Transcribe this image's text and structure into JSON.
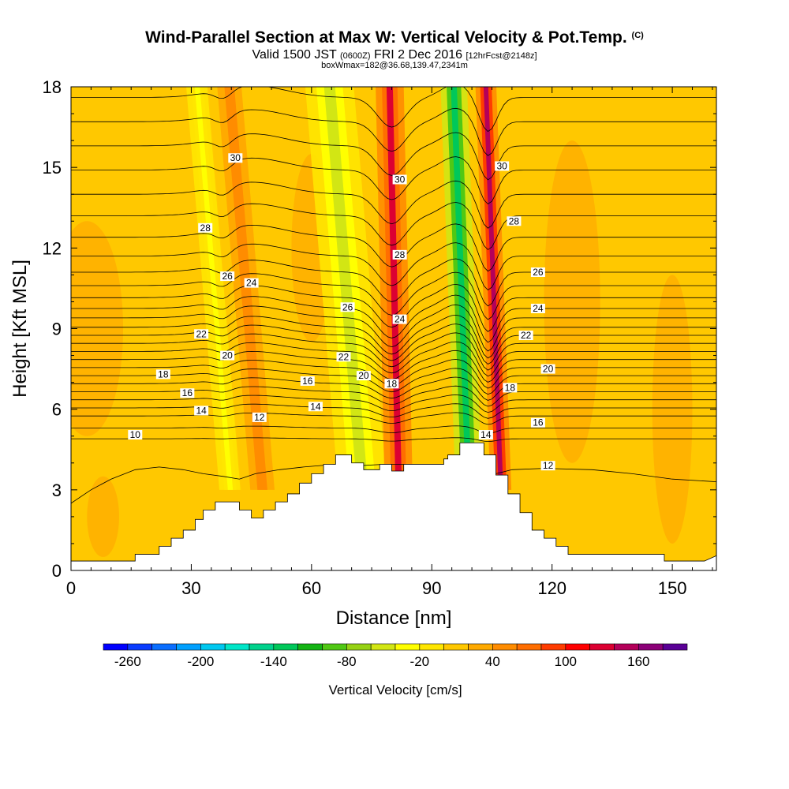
{
  "header": {
    "title": "Wind-Parallel Section at Max W: Vertical Velocity & Pot.Temp.",
    "title_mark": "(C)",
    "valid_prefix": "Valid 1500 JST",
    "valid_utc": "(0600Z)",
    "valid_date": "FRI 2 Dec 2016",
    "forecast": "[12hrFcst@2148z]",
    "box_info": "boxWmax=182@36.68,139.47,2341m"
  },
  "chart_data": {
    "type": "heatmap",
    "xlabel": "Distance [nm]",
    "ylabel": "Height [Kft MSL]",
    "xlim": [
      0,
      161
    ],
    "ylim": [
      0,
      18
    ],
    "xticks": [
      0,
      30,
      60,
      90,
      120,
      150
    ],
    "yticks": [
      0,
      3,
      6,
      9,
      12,
      15,
      18
    ],
    "grid": false,
    "colorbar": {
      "label": "Vertical Velocity [cm/s]",
      "levels": [
        -260,
        -240,
        -220,
        -200,
        -180,
        -160,
        -140,
        -120,
        -100,
        -80,
        -60,
        -40,
        -20,
        0,
        20,
        40,
        60,
        80,
        100,
        120,
        140,
        160,
        180
      ],
      "tick_labels": [
        "-260",
        "-200",
        "-140",
        "-80",
        "-20",
        "40",
        "100",
        "160"
      ],
      "colors": [
        "#0000ff",
        "#0a3cff",
        "#0a6eff",
        "#00a0ff",
        "#00c8f0",
        "#00e6c8",
        "#00d28c",
        "#00c85a",
        "#14b414",
        "#50c814",
        "#96d214",
        "#d2e614",
        "#ffff00",
        "#ffe600",
        "#ffc800",
        "#ffaa00",
        "#ff8c00",
        "#ff6e00",
        "#ff3c00",
        "#ff0000",
        "#dc0032",
        "#b4005a",
        "#8c0078",
        "#5a0096"
      ]
    },
    "terrain_profile": [
      [
        0,
        0.35
      ],
      [
        16,
        0.35
      ],
      [
        16,
        0.6
      ],
      [
        22,
        0.6
      ],
      [
        22,
        0.9
      ],
      [
        25,
        0.9
      ],
      [
        25,
        1.2
      ],
      [
        28,
        1.2
      ],
      [
        28,
        1.5
      ],
      [
        31,
        1.5
      ],
      [
        31,
        1.9
      ],
      [
        33,
        1.9
      ],
      [
        33,
        2.25
      ],
      [
        36,
        2.25
      ],
      [
        36,
        2.55
      ],
      [
        42,
        2.55
      ],
      [
        42,
        2.25
      ],
      [
        45,
        2.25
      ],
      [
        45,
        1.95
      ],
      [
        48,
        1.95
      ],
      [
        48,
        2.25
      ],
      [
        51,
        2.25
      ],
      [
        51,
        2.55
      ],
      [
        54,
        2.55
      ],
      [
        54,
        2.85
      ],
      [
        57,
        2.85
      ],
      [
        57,
        3.25
      ],
      [
        60,
        3.25
      ],
      [
        60,
        3.6
      ],
      [
        63,
        3.6
      ],
      [
        63,
        3.95
      ],
      [
        66,
        3.95
      ],
      [
        66,
        4.3
      ],
      [
        70,
        4.3
      ],
      [
        70,
        4.0
      ],
      [
        73,
        4.0
      ],
      [
        73,
        3.75
      ],
      [
        77,
        3.75
      ],
      [
        77,
        3.95
      ],
      [
        80,
        3.95
      ],
      [
        80,
        3.7
      ],
      [
        83,
        3.7
      ],
      [
        83,
        3.95
      ],
      [
        93,
        3.95
      ],
      [
        93,
        4.15
      ],
      [
        94,
        4.15
      ],
      [
        94,
        4.3
      ],
      [
        97,
        4.3
      ],
      [
        97,
        4.75
      ],
      [
        103,
        4.75
      ],
      [
        103,
        4.3
      ],
      [
        106,
        4.3
      ],
      [
        106,
        3.55
      ],
      [
        109,
        3.55
      ],
      [
        109,
        2.85
      ],
      [
        112,
        2.85
      ],
      [
        112,
        2.15
      ],
      [
        115,
        2.15
      ],
      [
        115,
        1.5
      ],
      [
        118,
        1.5
      ],
      [
        118,
        1.2
      ],
      [
        121,
        1.2
      ],
      [
        121,
        0.9
      ],
      [
        124,
        0.9
      ],
      [
        124,
        0.6
      ],
      [
        148,
        0.6
      ],
      [
        148,
        0.35
      ],
      [
        158,
        0.35
      ],
      [
        161,
        0.55
      ]
    ],
    "updraft_bands": [
      {
        "x": 81,
        "w": 3.5,
        "value": 120
      },
      {
        "x": 106,
        "w": 2.6,
        "value": 140
      },
      {
        "x": 45,
        "w": 5.5,
        "value": 40
      }
    ],
    "downdraft_bands": [
      {
        "x": 70,
        "w": 5.5,
        "value": -60
      },
      {
        "x": 98,
        "w": 3,
        "value": -130
      },
      {
        "x": 37,
        "w": 2.5,
        "value": -30
      }
    ],
    "contour_labels": [
      {
        "text": "30",
        "x": 41,
        "y": 15.35
      },
      {
        "text": "28",
        "x": 33.5,
        "y": 12.75
      },
      {
        "text": "26",
        "x": 39,
        "y": 10.95
      },
      {
        "text": "24",
        "x": 45,
        "y": 10.7
      },
      {
        "text": "22",
        "x": 32.5,
        "y": 8.8
      },
      {
        "text": "20",
        "x": 39,
        "y": 8.0
      },
      {
        "text": "18",
        "x": 23,
        "y": 7.3
      },
      {
        "text": "16",
        "x": 29,
        "y": 6.6
      },
      {
        "text": "14",
        "x": 32.5,
        "y": 5.95
      },
      {
        "text": "12",
        "x": 47,
        "y": 5.7
      },
      {
        "text": "10",
        "x": 16,
        "y": 5.05
      },
      {
        "text": "16",
        "x": 59,
        "y": 7.05
      },
      {
        "text": "14",
        "x": 61,
        "y": 6.1
      },
      {
        "text": "26",
        "x": 69,
        "y": 9.8
      },
      {
        "text": "22",
        "x": 68,
        "y": 7.95
      },
      {
        "text": "20",
        "x": 73,
        "y": 7.25
      },
      {
        "text": "18",
        "x": 80,
        "y": 6.95
      },
      {
        "text": "30",
        "x": 82,
        "y": 14.55
      },
      {
        "text": "28",
        "x": 82,
        "y": 11.75
      },
      {
        "text": "24",
        "x": 82,
        "y": 9.35
      },
      {
        "text": "30",
        "x": 107.5,
        "y": 15.05
      },
      {
        "text": "28",
        "x": 110.5,
        "y": 13.0
      },
      {
        "text": "26",
        "x": 116.5,
        "y": 11.1
      },
      {
        "text": "24",
        "x": 116.5,
        "y": 9.75
      },
      {
        "text": "22",
        "x": 113.5,
        "y": 8.75
      },
      {
        "text": "20",
        "x": 119,
        "y": 7.5
      },
      {
        "text": "18",
        "x": 109.5,
        "y": 6.8
      },
      {
        "text": "16",
        "x": 116.5,
        "y": 5.5
      },
      {
        "text": "14",
        "x": 103.5,
        "y": 5.05
      },
      {
        "text": "12",
        "x": 119,
        "y": 3.9
      }
    ],
    "contour_levels": [
      {
        "level": 10,
        "ref": 4.9
      },
      {
        "level": 11,
        "ref": 5.3
      },
      {
        "level": 12,
        "ref": 5.75
      },
      {
        "level": 13,
        "ref": 6.05
      },
      {
        "level": 14,
        "ref": 6.35
      },
      {
        "level": 15,
        "ref": 6.65
      },
      {
        "level": 16,
        "ref": 6.95
      },
      {
        "level": 17,
        "ref": 7.25
      },
      {
        "level": 18,
        "ref": 7.55
      },
      {
        "level": 19,
        "ref": 7.85
      },
      {
        "level": 20,
        "ref": 8.15
      },
      {
        "level": 21,
        "ref": 8.45
      },
      {
        "level": 22,
        "ref": 8.75
      },
      {
        "level": 23,
        "ref": 9.05
      },
      {
        "level": 24,
        "ref": 9.4
      },
      {
        "level": 25,
        "ref": 9.75
      },
      {
        "level": 26,
        "ref": 10.15
      },
      {
        "level": 27,
        "ref": 10.6
      },
      {
        "level": 28,
        "ref": 11.1
      },
      {
        "level": 29,
        "ref": 11.7
      },
      {
        "level": 30,
        "ref": 12.4
      },
      {
        "level": 31,
        "ref": 13.2
      },
      {
        "level": 32,
        "ref": 14.0
      },
      {
        "level": 33,
        "ref": 14.9
      },
      {
        "level": 34,
        "ref": 15.8
      },
      {
        "level": 35,
        "ref": 16.7
      },
      {
        "level": 36,
        "ref": 17.6
      }
    ],
    "low_contour": [
      [
        0,
        2.5
      ],
      [
        5,
        3.0
      ],
      [
        10,
        3.4
      ],
      [
        16,
        3.75
      ],
      [
        22,
        3.85
      ],
      [
        28,
        3.75
      ],
      [
        33,
        3.6
      ],
      [
        38,
        3.5
      ],
      [
        42,
        3.4
      ],
      [
        46,
        3.6
      ],
      [
        52,
        3.75
      ],
      [
        58,
        3.85
      ],
      [
        66,
        3.95
      ],
      [
        72,
        3.9
      ],
      [
        78,
        3.95
      ],
      [
        86,
        3.95
      ],
      [
        93,
        3.95
      ]
    ],
    "low_contour_right": [
      [
        106,
        3.6
      ],
      [
        110,
        3.75
      ],
      [
        118,
        3.8
      ],
      [
        130,
        3.75
      ],
      [
        140,
        3.6
      ],
      [
        150,
        3.4
      ],
      [
        161,
        3.3
      ]
    ]
  }
}
